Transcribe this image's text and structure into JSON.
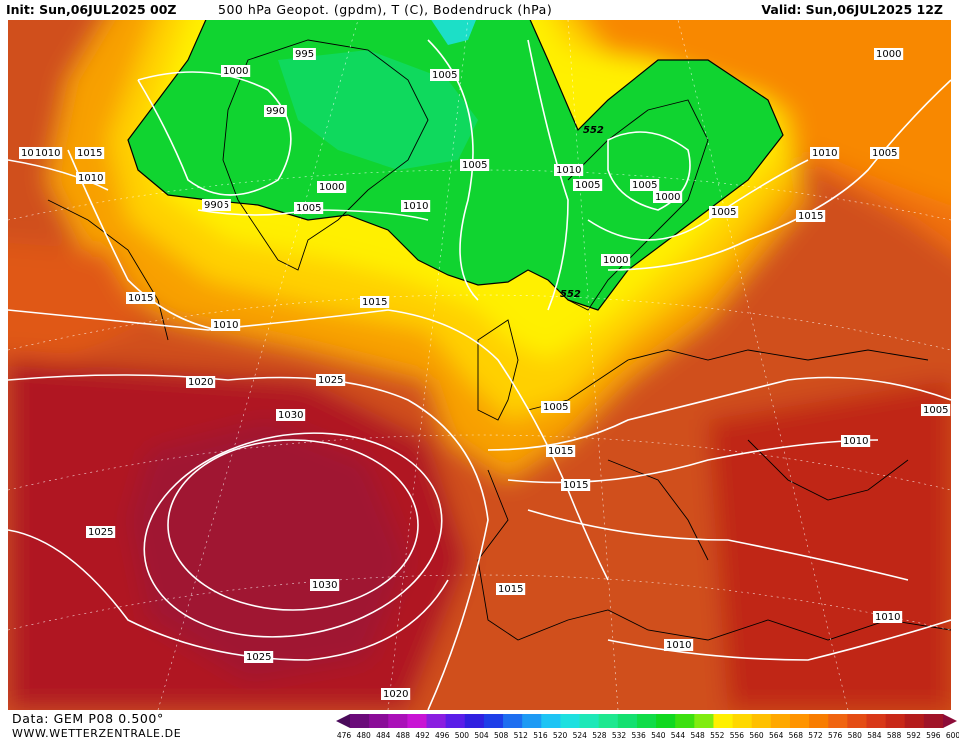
{
  "header": {
    "init": "Init: Sun,06JUL2025 00Z",
    "title": "500 hPa Geopot. (gpdm), T (C), Bodendruck (hPa)",
    "valid": "Valid: Sun,06JUL2025 12Z"
  },
  "footer": {
    "data_source": "Data: GEM P08 0.500°",
    "website": "WWW.WETTERZENTRALE.DE"
  },
  "colorbar": {
    "values": [
      "476",
      "480",
      "484",
      "488",
      "492",
      "496",
      "500",
      "504",
      "508",
      "512",
      "516",
      "520",
      "524",
      "528",
      "532",
      "536",
      "540",
      "544",
      "548",
      "552",
      "556",
      "560",
      "564",
      "568",
      "572",
      "576",
      "580",
      "584",
      "588",
      "592",
      "596",
      "600"
    ],
    "colors": [
      "#4a0a5a",
      "#6b0b7a",
      "#8a0c98",
      "#aa10b8",
      "#c814d4",
      "#8a1ee0",
      "#5a1ee8",
      "#3020e0",
      "#1e3ee8",
      "#1e6ef0",
      "#1e9af4",
      "#1ec4f4",
      "#1ee0e0",
      "#1ee8b8",
      "#1ee890",
      "#14e070",
      "#10dc48",
      "#10d820",
      "#3ce010",
      "#80ec10",
      "#fff000",
      "#ffd800",
      "#ffc000",
      "#ffa800",
      "#ff9400",
      "#f87c00",
      "#f06410",
      "#e44c14",
      "#d83818",
      "#c82818",
      "#b41c1c",
      "#a01428",
      "#8c0c38"
    ]
  },
  "isobar_labels": [
    "995",
    "1000",
    "990",
    "1005",
    "1005",
    "552",
    "1010",
    "1015",
    "1010",
    "1005",
    "1010",
    "1005",
    "1000",
    "1005",
    "1010",
    "1005",
    "1015",
    "1005",
    "995",
    "1000",
    "1000",
    "552",
    "1010",
    "1015",
    "1015",
    "1010",
    "1015",
    "1020",
    "1025",
    "1030",
    "1025",
    "1030",
    "1025",
    "1020",
    "1005",
    "1010",
    "1015",
    "1015",
    "1010",
    "1010",
    "1005",
    "1010",
    "1000",
    "990"
  ]
}
